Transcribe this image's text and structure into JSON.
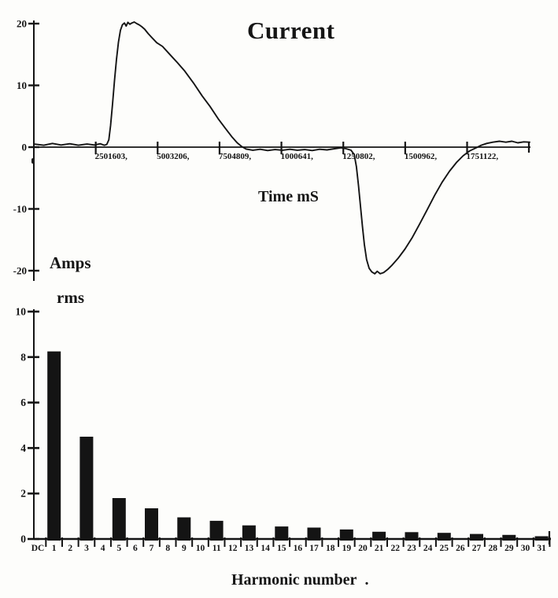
{
  "figure": {
    "title": "Current",
    "left_unit_line1": "Amps",
    "left_unit_line2": "rms",
    "harmonic_label_suffix": "."
  },
  "colors": {
    "ink": "#141414",
    "background": "#fdfdfb"
  },
  "chart_data": [
    {
      "type": "line",
      "title": "Current",
      "xlabel": "Time mS",
      "ylabel": "Amps",
      "xlim": [
        0,
        2004
      ],
      "ylim": [
        -22,
        21
      ],
      "grid": false,
      "legend": "none",
      "x_ticks": [
        {
          "value": 250.1603,
          "label": "2501603,"
        },
        {
          "value": 500.3206,
          "label": "5003206,"
        },
        {
          "value": 750.4809,
          "label": "7504809,"
        },
        {
          "value": 1000.641,
          "label": "1000641,"
        },
        {
          "value": 1250.802,
          "label": "1250802,"
        },
        {
          "value": 1500.962,
          "label": "1500962,"
        },
        {
          "value": 1751.122,
          "label": "1751122,"
        }
      ],
      "y_ticks": [
        {
          "value": 20,
          "label": "20"
        },
        {
          "value": 10,
          "label": "10"
        },
        {
          "value": 0,
          "label": "0"
        },
        {
          "value": -10,
          "label": "-10"
        },
        {
          "value": -20,
          "label": "-20"
        }
      ],
      "series": [
        {
          "name": "current-waveform",
          "points": [
            [
              0,
              0.5
            ],
            [
              40,
              0.3
            ],
            [
              75,
              0.6
            ],
            [
              110,
              0.35
            ],
            [
              145,
              0.55
            ],
            [
              180,
              0.3
            ],
            [
              215,
              0.5
            ],
            [
              245,
              0.35
            ],
            [
              268,
              0.55
            ],
            [
              285,
              0.3
            ],
            [
              295,
              0.45
            ],
            [
              303,
              1.2
            ],
            [
              310,
              3.5
            ],
            [
              318,
              7.0
            ],
            [
              326,
              10.8
            ],
            [
              334,
              14.2
            ],
            [
              342,
              17.0
            ],
            [
              350,
              18.9
            ],
            [
              358,
              19.8
            ],
            [
              366,
              20.1
            ],
            [
              373,
              19.6
            ],
            [
              380,
              20.2
            ],
            [
              388,
              19.9
            ],
            [
              396,
              20.1
            ],
            [
              406,
              20.25
            ],
            [
              416,
              20.0
            ],
            [
              426,
              19.8
            ],
            [
              436,
              19.5
            ],
            [
              448,
              19.1
            ],
            [
              462,
              18.4
            ],
            [
              478,
              17.7
            ],
            [
              497,
              16.9
            ],
            [
              520,
              16.3
            ],
            [
              550,
              15.0
            ],
            [
              580,
              13.7
            ],
            [
              610,
              12.3
            ],
            [
              645,
              10.4
            ],
            [
              680,
              8.3
            ],
            [
              712,
              6.6
            ],
            [
              745,
              4.6
            ],
            [
              775,
              3.0
            ],
            [
              800,
              1.7
            ],
            [
              822,
              0.7
            ],
            [
              840,
              0.1
            ],
            [
              858,
              -0.3
            ],
            [
              885,
              -0.5
            ],
            [
              915,
              -0.35
            ],
            [
              945,
              -0.55
            ],
            [
              975,
              -0.4
            ],
            [
              1005,
              -0.5
            ],
            [
              1035,
              -0.35
            ],
            [
              1065,
              -0.5
            ],
            [
              1095,
              -0.4
            ],
            [
              1125,
              -0.55
            ],
            [
              1155,
              -0.35
            ],
            [
              1185,
              -0.45
            ],
            [
              1215,
              -0.25
            ],
            [
              1242,
              -0.1
            ],
            [
              1262,
              -0.25
            ],
            [
              1282,
              -0.5
            ],
            [
              1295,
              -1.2
            ],
            [
              1304,
              -3.2
            ],
            [
              1312,
              -6.2
            ],
            [
              1320,
              -9.5
            ],
            [
              1328,
              -12.8
            ],
            [
              1336,
              -15.8
            ],
            [
              1345,
              -18.2
            ],
            [
              1355,
              -19.6
            ],
            [
              1366,
              -20.2
            ],
            [
              1378,
              -20.5
            ],
            [
              1388,
              -20.1
            ],
            [
              1400,
              -20.5
            ],
            [
              1414,
              -20.3
            ],
            [
              1430,
              -19.8
            ],
            [
              1448,
              -19.1
            ],
            [
              1472,
              -18.0
            ],
            [
              1500,
              -16.5
            ],
            [
              1530,
              -14.6
            ],
            [
              1560,
              -12.4
            ],
            [
              1590,
              -10.1
            ],
            [
              1620,
              -7.8
            ],
            [
              1650,
              -5.7
            ],
            [
              1680,
              -3.9
            ],
            [
              1708,
              -2.5
            ],
            [
              1735,
              -1.4
            ],
            [
              1762,
              -0.6
            ],
            [
              1788,
              -0.1
            ],
            [
              1808,
              0.3
            ],
            [
              1830,
              0.6
            ],
            [
              1855,
              0.8
            ],
            [
              1882,
              0.95
            ],
            [
              1908,
              0.8
            ],
            [
              1932,
              0.95
            ],
            [
              1956,
              0.7
            ],
            [
              1980,
              0.85
            ],
            [
              2004,
              0.8
            ]
          ]
        }
      ]
    },
    {
      "type": "bar",
      "title": "",
      "xlabel": "Harmonic number",
      "ylabel": "Amps rms",
      "ylim": [
        0,
        10.9
      ],
      "grid": false,
      "y_ticks": [
        {
          "value": 0,
          "label": "0"
        },
        {
          "value": 2,
          "label": "2"
        },
        {
          "value": 4,
          "label": "4"
        },
        {
          "value": 6,
          "label": "6"
        },
        {
          "value": 8,
          "label": "8"
        },
        {
          "value": 10,
          "label": "10"
        }
      ],
      "categories": [
        "DC",
        "1",
        "2",
        "3",
        "4",
        "5",
        "6",
        "7",
        "8",
        "9",
        "10",
        "11",
        "12",
        "13",
        "14",
        "15",
        "16",
        "17",
        "18",
        "19",
        "20",
        "21",
        "22",
        "23",
        "24",
        "25",
        "26",
        "27",
        "28",
        "29",
        "30",
        "31"
      ],
      "values": [
        0,
        8.25,
        0,
        4.5,
        0,
        1.8,
        0,
        1.35,
        0,
        0.95,
        0,
        0.8,
        0,
        0.6,
        0,
        0.55,
        0,
        0.5,
        0,
        0.42,
        0,
        0.32,
        0,
        0.3,
        0,
        0.27,
        0,
        0.22,
        0,
        0.18,
        0,
        0.12
      ]
    }
  ]
}
